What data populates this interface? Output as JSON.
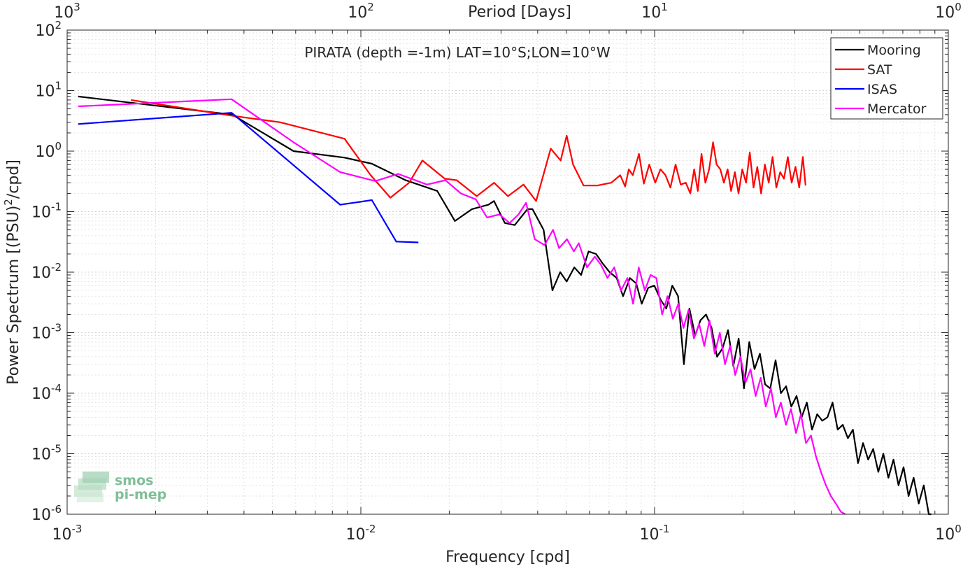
{
  "chart_data": {
    "type": "line",
    "title": "PIRATA (depth =-1m) LAT=10°S;LON=10°W",
    "xlabel": "Frequency [cpd]",
    "ylabel_main": "Power Spectrum [(PSU)",
    "ylabel_sup": "2",
    "ylabel_tail": "/cpd]",
    "x2label": "Period [Days]",
    "xscale": "log",
    "yscale": "log",
    "xlim": [
      0.001,
      1
    ],
    "ylim": [
      1e-06,
      100
    ],
    "grid": true,
    "legend_position": "top-right",
    "bottom_ticks": [
      {
        "value": 0.001,
        "base": "10",
        "exp": "-3"
      },
      {
        "value": 0.01,
        "base": "10",
        "exp": "-2"
      },
      {
        "value": 0.1,
        "base": "10",
        "exp": "-1"
      },
      {
        "value": 1,
        "base": "10",
        "exp": "0"
      }
    ],
    "top_ticks": [
      {
        "value": 0.001,
        "base": "10",
        "exp": "3"
      },
      {
        "value": 0.01,
        "base": "10",
        "exp": "2"
      },
      {
        "value": 0.1,
        "base": "10",
        "exp": "1"
      },
      {
        "value": 1,
        "base": "10",
        "exp": "0"
      }
    ],
    "y_ticks": [
      {
        "value": 100,
        "base": "10",
        "exp": "2"
      },
      {
        "value": 10,
        "base": "10",
        "exp": "1"
      },
      {
        "value": 1,
        "base": "10",
        "exp": "0"
      },
      {
        "value": 0.1,
        "base": "10",
        "exp": "-1"
      },
      {
        "value": 0.01,
        "base": "10",
        "exp": "-2"
      },
      {
        "value": 0.001,
        "base": "10",
        "exp": "-3"
      },
      {
        "value": 0.0001,
        "base": "10",
        "exp": "-4"
      },
      {
        "value": 1e-05,
        "base": "10",
        "exp": "-5"
      },
      {
        "value": 1e-06,
        "base": "10",
        "exp": "-6"
      }
    ],
    "series": [
      {
        "name": "Mooring",
        "color": "#000000",
        "x": [
          0.00109,
          0.00365,
          0.0059,
          0.0088,
          0.0109,
          0.0142,
          0.0182,
          0.0209,
          0.0239,
          0.0272,
          0.0284,
          0.0309,
          0.0334,
          0.0369,
          0.0384,
          0.0419,
          0.0449,
          0.0477,
          0.0502,
          0.0533,
          0.0562,
          0.0596,
          0.0632,
          0.0665,
          0.0703,
          0.0743,
          0.0781,
          0.0824,
          0.0866,
          0.0904,
          0.0951,
          0.0998,
          0.1049,
          0.1096,
          0.1149,
          0.1202,
          0.1258,
          0.1314,
          0.1374,
          0.1433,
          0.1497,
          0.1563,
          0.1632,
          0.1703,
          0.1778,
          0.1854,
          0.1933,
          0.2015,
          0.2101,
          0.2189,
          0.2283,
          0.2378,
          0.2477,
          0.2582,
          0.2691,
          0.2803,
          0.2921,
          0.3043,
          0.3168,
          0.3299,
          0.3436,
          0.3577,
          0.3723,
          0.3877,
          0.4036,
          0.42,
          0.4372,
          0.455,
          0.4735,
          0.4927,
          0.5127,
          0.5335,
          0.5551,
          0.5776,
          0.6009,
          0.6252,
          0.6505,
          0.6768,
          0.7042,
          0.7326,
          0.7621,
          0.7929,
          0.8248,
          0.858,
          0.8759
        ],
        "values": [
          8.0,
          4.0,
          1.0,
          0.78,
          0.62,
          0.33,
          0.22,
          0.07,
          0.11,
          0.13,
          0.15,
          0.065,
          0.06,
          0.11,
          0.11,
          0.05,
          0.005,
          0.01,
          0.007,
          0.012,
          0.009,
          0.022,
          0.02,
          0.014,
          0.01,
          0.008,
          0.004,
          0.008,
          0.0065,
          0.003,
          0.0055,
          0.006,
          0.0035,
          0.0025,
          0.006,
          0.004,
          0.0003,
          0.0025,
          0.0009,
          0.0016,
          0.002,
          0.0012,
          0.0004,
          0.00055,
          0.0011,
          0.00028,
          0.0008,
          0.00012,
          0.0007,
          0.00025,
          0.00045,
          0.00014,
          0.00012,
          0.00035,
          0.0001,
          0.00013,
          6e-05,
          9e-05,
          4e-05,
          7e-05,
          2.5e-05,
          4.5e-05,
          3.5e-05,
          4e-05,
          7e-05,
          2.5e-05,
          3e-05,
          1.8e-05,
          2.5e-05,
          7e-06,
          1.5e-05,
          8e-06,
          1.2e-05,
          5e-06,
          1e-05,
          4e-06,
          8e-06,
          3e-06,
          6e-06,
          2e-06,
          4e-06,
          1.5e-06,
          3e-06,
          1e-06,
          9e-07
        ]
      },
      {
        "name": "SAT",
        "color": "#ff0000",
        "x": [
          0.00165,
          0.0037,
          0.0053,
          0.0088,
          0.0108,
          0.0126,
          0.0146,
          0.0162,
          0.0193,
          0.0212,
          0.0248,
          0.0284,
          0.0317,
          0.0358,
          0.0395,
          0.0443,
          0.0479,
          0.0502,
          0.0528,
          0.0573,
          0.0638,
          0.0712,
          0.0764,
          0.0794,
          0.0817,
          0.0843,
          0.0885,
          0.0919,
          0.0959,
          0.1005,
          0.1047,
          0.1089,
          0.1132,
          0.1179,
          0.1227,
          0.1277,
          0.1323,
          0.1364,
          0.1403,
          0.1445,
          0.1489,
          0.1534,
          0.1581,
          0.1626,
          0.1674,
          0.1722,
          0.1772,
          0.1822,
          0.1876,
          0.1931,
          0.1989,
          0.2048,
          0.2109,
          0.2172,
          0.2238,
          0.2305,
          0.2374,
          0.2447,
          0.2521,
          0.2598,
          0.2677,
          0.2758,
          0.2842,
          0.2929,
          0.3018,
          0.3108,
          0.3198,
          0.3266
        ],
        "values": [
          7.0,
          3.8,
          3.0,
          1.6,
          0.4,
          0.17,
          0.3,
          0.7,
          0.35,
          0.33,
          0.18,
          0.3,
          0.18,
          0.28,
          0.15,
          1.1,
          0.7,
          1.8,
          0.6,
          0.27,
          0.27,
          0.3,
          0.4,
          0.26,
          0.5,
          0.4,
          0.9,
          0.29,
          0.6,
          0.3,
          0.5,
          0.4,
          0.25,
          0.6,
          0.28,
          0.3,
          0.2,
          0.5,
          0.22,
          0.9,
          0.3,
          0.5,
          1.4,
          0.6,
          0.5,
          0.3,
          0.5,
          0.22,
          0.45,
          0.2,
          0.5,
          0.3,
          0.95,
          0.25,
          0.55,
          0.2,
          0.6,
          0.3,
          0.8,
          0.25,
          0.45,
          0.35,
          0.8,
          0.3,
          0.55,
          0.25,
          0.8,
          0.27
        ]
      },
      {
        "name": "ISAS",
        "color": "#0000ff",
        "x": [
          0.00109,
          0.00363,
          0.0085,
          0.0109,
          0.0132,
          0.0157
        ],
        "values": [
          2.8,
          4.3,
          0.13,
          0.155,
          0.032,
          0.031
        ]
      },
      {
        "name": "Mercator",
        "color": "#ff00ff",
        "x": [
          0.00109,
          0.00363,
          0.0059,
          0.0085,
          0.0112,
          0.0134,
          0.0168,
          0.0194,
          0.0219,
          0.0246,
          0.0269,
          0.0296,
          0.0321,
          0.0344,
          0.0365,
          0.0391,
          0.0422,
          0.0451,
          0.0473,
          0.0503,
          0.0531,
          0.0552,
          0.0589,
          0.0626,
          0.0658,
          0.0691,
          0.0729,
          0.0769,
          0.0808,
          0.0845,
          0.0883,
          0.0926,
          0.0969,
          0.1014,
          0.1061,
          0.1107,
          0.1154,
          0.1204,
          0.1254,
          0.1306,
          0.1361,
          0.1418,
          0.1477,
          0.1538,
          0.1602,
          0.1668,
          0.1737,
          0.1808,
          0.1882,
          0.1959,
          0.2039,
          0.2122,
          0.2208,
          0.2298,
          0.2391,
          0.2488,
          0.2588,
          0.2692,
          0.2801,
          0.2913,
          0.303,
          0.3151,
          0.3277,
          0.3408,
          0.3544,
          0.3685,
          0.3832,
          0.3984,
          0.4142,
          0.4306,
          0.4456
        ],
        "values": [
          5.5,
          7.2,
          1.4,
          0.45,
          0.32,
          0.42,
          0.28,
          0.33,
          0.2,
          0.16,
          0.08,
          0.09,
          0.065,
          0.09,
          0.14,
          0.035,
          0.028,
          0.05,
          0.025,
          0.035,
          0.022,
          0.03,
          0.012,
          0.018,
          0.013,
          0.008,
          0.012,
          0.005,
          0.008,
          0.003,
          0.012,
          0.005,
          0.009,
          0.008,
          0.002,
          0.004,
          0.0017,
          0.003,
          0.0012,
          0.0024,
          0.0008,
          0.0014,
          0.0006,
          0.0016,
          0.00045,
          0.001,
          0.0003,
          0.0006,
          0.0002,
          0.0004,
          0.00015,
          0.00025,
          9e-05,
          0.00018,
          6e-05,
          0.00012,
          4e-05,
          7e-05,
          3e-05,
          5.5e-05,
          2.2e-05,
          4.5e-05,
          1.5e-05,
          2e-05,
          9e-06,
          5e-06,
          3e-06,
          2e-06,
          1.5e-06,
          1.1e-06,
          9e-07
        ]
      }
    ]
  },
  "logo": {
    "line1": "smos",
    "line2": "pi-mep"
  }
}
